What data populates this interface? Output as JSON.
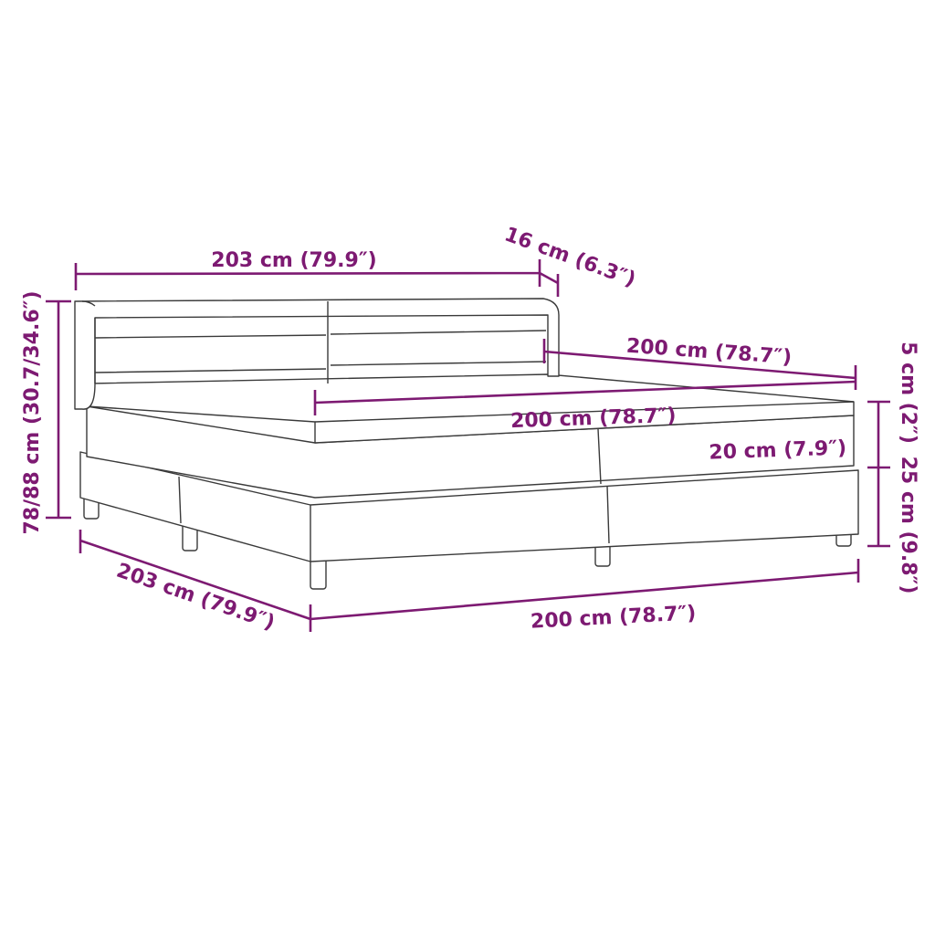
{
  "accent_color": "#7d1a72",
  "labels": {
    "headboard_width": "203 cm (79.9″)",
    "headboard_depth": "16 cm (6.3″)",
    "inner_length": "200 cm (78.7″)",
    "mattress_width": "200 cm (78.7″)",
    "mattress_height": "20 cm (7.9″)",
    "topper_height": "5 cm (2″)",
    "base_height": "25 cm (9.8″)",
    "total_height": "78/88 cm (30.7/34.6″)",
    "total_length": "203 cm (79.9″)",
    "total_width": "200 cm (78.7″)"
  }
}
